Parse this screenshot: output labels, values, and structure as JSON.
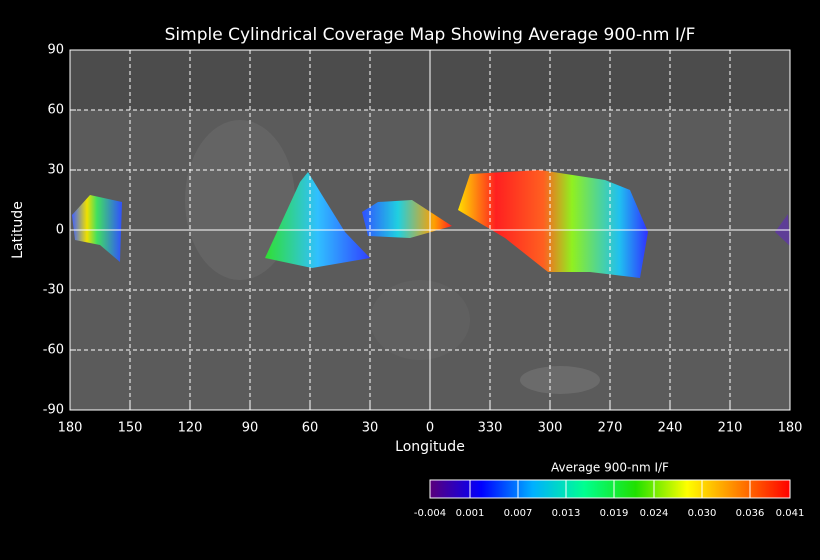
{
  "chart_data": {
    "type": "map",
    "title": "Simple Cylindrical Coverage Map Showing Average 900-nm I/F",
    "xlabel": "Longitude",
    "ylabel": "Latitude",
    "xlim": [
      180,
      -180
    ],
    "xticks": [
      180,
      150,
      120,
      90,
      60,
      30,
      0,
      {
        "value": -30,
        "label": "330"
      },
      {
        "value": -60,
        "label": "300"
      },
      {
        "value": -90,
        "label": "270"
      },
      {
        "value": -120,
        "label": "240"
      },
      {
        "value": -150,
        "label": "210"
      },
      {
        "value": -180,
        "label": "180"
      }
    ],
    "ylim": [
      -90,
      90
    ],
    "yticks": [
      90,
      60,
      30,
      0,
      -30,
      -60,
      -90
    ],
    "grid": true,
    "colorbar": {
      "title": "Average 900-nm I/F",
      "lim": [
        -0.004,
        0.041
      ],
      "ticks": [
        -0.004,
        0.001,
        0.007,
        0.013,
        0.019,
        0.024,
        {
          "value": 0.03,
          "label": "0.030"
        },
        0.036,
        0.041
      ],
      "colors": [
        "#5a007a",
        "#0000ff",
        "#00b0ff",
        "#00ff90",
        "#20e000",
        "#ffff00",
        "#ff8000",
        "#ff0000"
      ]
    }
  }
}
